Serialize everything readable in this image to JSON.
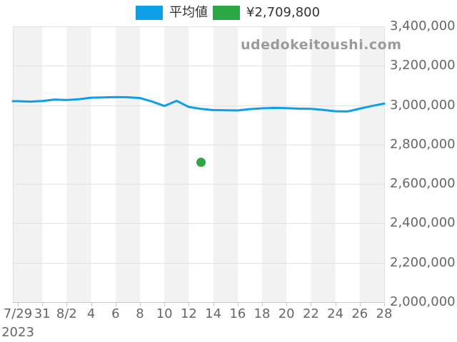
{
  "legend": {
    "average_label": "平均値",
    "listing_label": "¥2,709,800"
  },
  "watermark": "udedokeitoushi.com",
  "chart_data": {
    "type": "line",
    "title": "",
    "xlabel": "",
    "ylabel": "",
    "year_label": "2023",
    "x": [
      "7/29",
      "7/30",
      "7/31",
      "8/1",
      "8/2",
      "8/3",
      "8/4",
      "8/5",
      "8/6",
      "8/7",
      "8/8",
      "8/9",
      "8/10",
      "8/11",
      "8/12",
      "8/13",
      "8/14",
      "8/15",
      "8/16",
      "8/17",
      "8/18",
      "8/19",
      "8/20",
      "8/21",
      "8/22",
      "8/23",
      "8/24",
      "8/25",
      "8/26",
      "8/27",
      "8/28"
    ],
    "series": [
      {
        "name": "平均値",
        "type": "line",
        "color": "#0d9fe8",
        "values": [
          3020000,
          3018000,
          3021000,
          3028000,
          3026000,
          3030000,
          3038000,
          3039000,
          3041000,
          3040000,
          3036000,
          3018000,
          2996000,
          3022000,
          2991000,
          2981000,
          2975000,
          2974000,
          2973000,
          2980000,
          2984000,
          2986000,
          2985000,
          2982000,
          2981000,
          2976000,
          2969000,
          2968000,
          2982000,
          2996000,
          3008000
        ]
      },
      {
        "name": "¥2,709,800",
        "type": "scatter",
        "color": "#2ba843",
        "points": [
          {
            "x": "8/13",
            "value": 2709800
          }
        ]
      }
    ],
    "x_tick_labels": [
      "7/29",
      "31",
      "8/2",
      "4",
      "6",
      "8",
      "10",
      "12",
      "14",
      "16",
      "18",
      "20",
      "22",
      "24",
      "26",
      "28"
    ],
    "y_ticks": [
      {
        "value": 2000000,
        "label": "2,000,000"
      },
      {
        "value": 2200000,
        "label": "2,200,000"
      },
      {
        "value": 2400000,
        "label": "2,400,000"
      },
      {
        "value": 2600000,
        "label": "2,600,000"
      },
      {
        "value": 2800000,
        "label": "2,800,000"
      },
      {
        "value": 3000000,
        "label": "3,000,000"
      },
      {
        "value": 3200000,
        "label": "3,200,000"
      },
      {
        "value": 3400000,
        "label": "3,400,000"
      }
    ],
    "ylim": [
      2000000,
      3400000
    ],
    "grid": "horizontal",
    "legend_position": "top",
    "plot_bands": "alternating 2-day vertical stripes",
    "colors": {
      "stripe": "#f2f2f2",
      "grid": "#e2e2e2",
      "axis": "#c9c9c9",
      "border": "#e0e0e0",
      "axis_label": "#666666",
      "legend_text": "#333333",
      "watermark": "#9b9b9b"
    }
  }
}
